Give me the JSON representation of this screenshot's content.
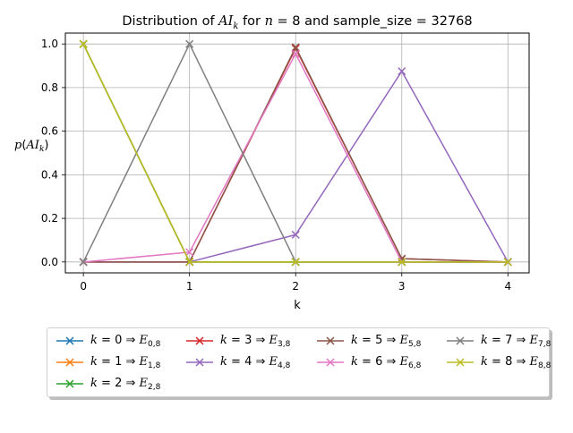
{
  "chart_data": {
    "type": "line",
    "title": "Distribution of AI_k for n = 8 and sample_size = 32768",
    "xlabel": "k",
    "ylabel": "p(AI_k)",
    "xlim": [
      -0.17,
      4.2
    ],
    "ylim": [
      -0.05,
      1.05
    ],
    "xticks": [
      0,
      1,
      2,
      3,
      4
    ],
    "xtick_labels": [
      "0",
      "1",
      "2",
      "3",
      "4"
    ],
    "yticks": [
      0.0,
      0.2,
      0.4,
      0.6,
      0.8,
      1.0
    ],
    "ytick_labels": [
      "0.0",
      "0.2",
      "0.4",
      "0.6",
      "0.8",
      "1.0"
    ],
    "grid": true,
    "legend_position": "below",
    "marker": "x",
    "x": [
      0,
      1,
      2,
      3,
      4
    ],
    "series": [
      {
        "name": "k = 0 ⇒ E_{0,8}",
        "color": "#1f77b4",
        "values": [
          1.0,
          0.0,
          0.0,
          0.0,
          0.0
        ]
      },
      {
        "name": "k = 1 ⇒ E_{1,8}",
        "color": "#ff7f0e",
        "values": [
          1.0,
          0.0,
          0.0,
          0.0,
          0.0
        ]
      },
      {
        "name": "k = 2 ⇒ E_{2,8}",
        "color": "#2ca02c",
        "values": [
          1.0,
          0.0,
          0.0,
          0.0,
          0.0
        ]
      },
      {
        "name": "k = 3 ⇒ E_{3,8}",
        "color": "#d62728",
        "values": [
          0.0,
          0.0,
          0.98,
          0.015,
          0.0
        ]
      },
      {
        "name": "k = 4 ⇒ E_{4,8}",
        "color": "#9467bd",
        "values": [
          0.0,
          0.0,
          0.125,
          0.875,
          0.0
        ]
      },
      {
        "name": "k = 5 ⇒ E_{5,8}",
        "color": "#8c564b",
        "values": [
          0.0,
          0.0,
          0.985,
          0.015,
          0.0
        ]
      },
      {
        "name": "k = 6 ⇒ E_{6,8}",
        "color": "#e377c2",
        "values": [
          0.0,
          0.045,
          0.955,
          0.0,
          0.0
        ]
      },
      {
        "name": "k = 7 ⇒ E_{7,8}",
        "color": "#7f7f7f",
        "values": [
          0.0,
          1.0,
          0.0,
          0.0,
          0.0
        ]
      },
      {
        "name": "k = 8 ⇒ E_{8,8}",
        "color": "#bcbd22",
        "values": [
          1.0,
          0.0,
          0.0,
          0.0,
          0.0
        ]
      }
    ]
  },
  "legend": {
    "entries": [
      {
        "k": "0",
        "sub": "0,8"
      },
      {
        "k": "1",
        "sub": "1,8"
      },
      {
        "k": "2",
        "sub": "2,8"
      },
      {
        "k": "3",
        "sub": "3,8"
      },
      {
        "k": "4",
        "sub": "4,8"
      },
      {
        "k": "5",
        "sub": "5,8"
      },
      {
        "k": "6",
        "sub": "6,8"
      },
      {
        "k": "7",
        "sub": "7,8"
      },
      {
        "k": "8",
        "sub": "8,8"
      }
    ]
  }
}
